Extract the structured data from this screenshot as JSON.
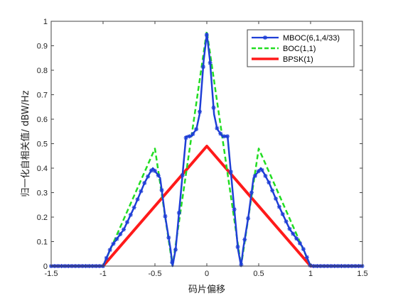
{
  "chart_data": {
    "type": "line",
    "xlabel": "码片偏移",
    "ylabel": "归一化自相关值/ dBW/Hz",
    "xlim": [
      -1.5,
      1.5
    ],
    "ylim": [
      0,
      1
    ],
    "xticks": [
      "-1.5",
      "-1",
      "-0.5",
      "0",
      "0.5",
      "1",
      "1.5"
    ],
    "yticks": [
      "0",
      "0.1",
      "0.2",
      "0.3",
      "0.4",
      "0.5",
      "0.6",
      "0.7",
      "0.8",
      "0.9",
      "1"
    ],
    "grid": false,
    "legend_position": "top-right",
    "series": [
      {
        "name": "MBOC(6,1,4/33)",
        "color": "#1f3fd6",
        "style": "solid-star-markers",
        "points": [
          [
            -1.5,
            0
          ],
          [
            -1.0,
            0
          ],
          [
            -0.92,
            0.08
          ],
          [
            -0.8,
            0.15
          ],
          [
            -0.7,
            0.24
          ],
          [
            -0.6,
            0.34
          ],
          [
            -0.55,
            0.38
          ],
          [
            -0.52,
            0.4
          ],
          [
            -0.45,
            0.36
          ],
          [
            -0.4,
            0.2
          ],
          [
            -0.35,
            0.07
          ],
          [
            -0.33,
            0.0
          ],
          [
            -0.3,
            0.07
          ],
          [
            -0.25,
            0.3
          ],
          [
            -0.2,
            0.53
          ],
          [
            -0.15,
            0.53
          ],
          [
            -0.1,
            0.56
          ],
          [
            -0.07,
            0.62
          ],
          [
            -0.03,
            0.84
          ],
          [
            0,
            0.95
          ],
          [
            0.03,
            0.84
          ],
          [
            0.07,
            0.62
          ],
          [
            0.1,
            0.56
          ],
          [
            0.15,
            0.53
          ],
          [
            0.2,
            0.53
          ],
          [
            0.25,
            0.3
          ],
          [
            0.3,
            0.07
          ],
          [
            0.33,
            0.0
          ],
          [
            0.35,
            0.07
          ],
          [
            0.4,
            0.2
          ],
          [
            0.45,
            0.36
          ],
          [
            0.52,
            0.4
          ],
          [
            0.55,
            0.38
          ],
          [
            0.6,
            0.34
          ],
          [
            0.7,
            0.24
          ],
          [
            0.8,
            0.15
          ],
          [
            0.92,
            0.08
          ],
          [
            1.0,
            0
          ],
          [
            1.5,
            0
          ]
        ]
      },
      {
        "name": "BOC(1,1)",
        "color": "#22dd22",
        "style": "dashed",
        "points": [
          [
            -1.5,
            0
          ],
          [
            -1.0,
            0
          ],
          [
            -0.5,
            0.48
          ],
          [
            -0.33,
            0.0
          ],
          [
            0,
            0.96
          ],
          [
            0.33,
            0.0
          ],
          [
            0.5,
            0.48
          ],
          [
            1.0,
            0
          ],
          [
            1.5,
            0
          ]
        ]
      },
      {
        "name": "BPSK(1)",
        "color": "#ff1a1a",
        "style": "solid-thick",
        "points": [
          [
            -1.5,
            0
          ],
          [
            -1.0,
            0
          ],
          [
            0,
            0.49
          ],
          [
            1.0,
            0
          ],
          [
            1.5,
            0
          ]
        ]
      }
    ]
  }
}
